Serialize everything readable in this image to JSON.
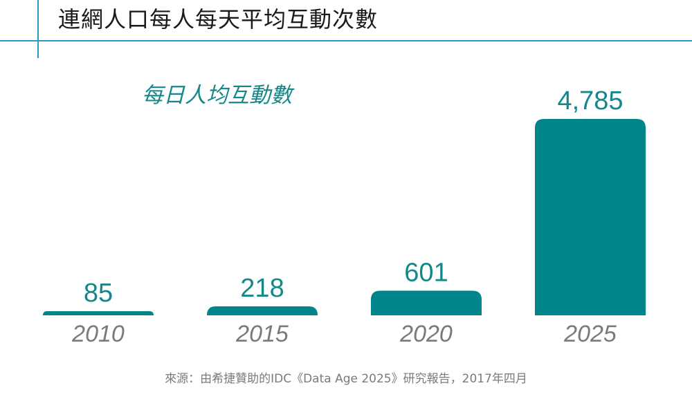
{
  "header": {
    "title": "連網人口每人每天平均互動次數"
  },
  "chart_data": {
    "type": "bar",
    "title": "每日人均互動數",
    "categories": [
      "2010",
      "2015",
      "2020",
      "2025"
    ],
    "values": [
      85,
      218,
      601,
      4785
    ],
    "value_labels": [
      "85",
      "218",
      "601",
      "4,785"
    ],
    "ylim": [
      0,
      4785
    ],
    "grid": false,
    "legend": "none",
    "bar_color": "#00858a",
    "label_color": "#13878a",
    "category_color": "#7a7a7a"
  },
  "footer": {
    "source": "來源：由希捷贊助的IDC《Data Age 2025》研究報告，2017年四月"
  }
}
